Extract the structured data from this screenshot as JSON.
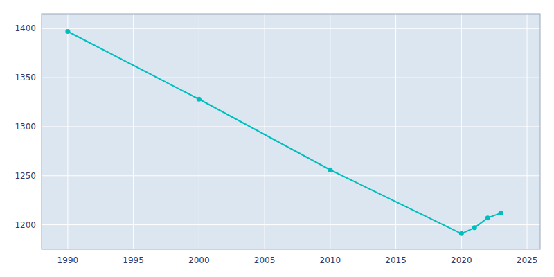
{
  "chart_data": {
    "type": "line",
    "x": [
      1990,
      2000,
      2010,
      2020,
      2021,
      2022,
      2023
    ],
    "values": [
      1397,
      1328,
      1256,
      1191,
      1197,
      1207,
      1212
    ],
    "color": "#00BEBE",
    "marker": "circle",
    "xlim": [
      1988,
      2026
    ],
    "ylim": [
      1175,
      1415
    ],
    "xticks": [
      1990,
      1995,
      2000,
      2005,
      2010,
      2015,
      2020,
      2025
    ],
    "yticks": [
      1200,
      1250,
      1300,
      1350,
      1400
    ],
    "grid": true
  }
}
